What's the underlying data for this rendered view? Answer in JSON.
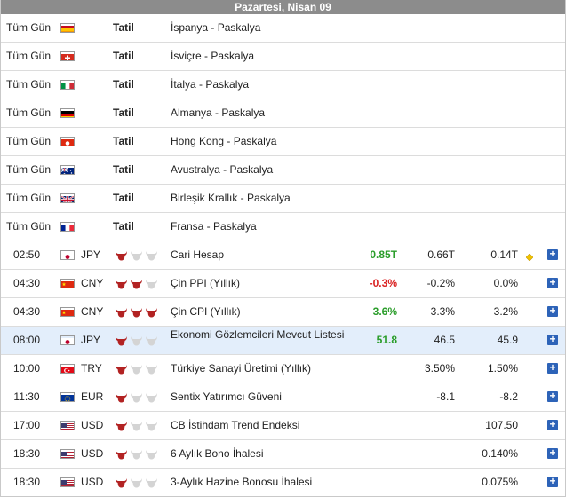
{
  "header": {
    "date": "Pazartesi, Nisan 09"
  },
  "holidays": [
    {
      "time": "Tüm Gün",
      "flag": "spain-flag-icon",
      "status": "Tatil",
      "event": "İspanya - Paskalya"
    },
    {
      "time": "Tüm Gün",
      "flag": "switzerland-flag-icon",
      "status": "Tatil",
      "event": "İsviçre - Paskalya"
    },
    {
      "time": "Tüm Gün",
      "flag": "italy-flag-icon",
      "status": "Tatil",
      "event": "İtalya - Paskalya"
    },
    {
      "time": "Tüm Gün",
      "flag": "germany-flag-icon",
      "status": "Tatil",
      "event": "Almanya - Paskalya"
    },
    {
      "time": "Tüm Gün",
      "flag": "hong-kong-flag-icon",
      "status": "Tatil",
      "event": "Hong Kong - Paskalya"
    },
    {
      "time": "Tüm Gün",
      "flag": "australia-flag-icon",
      "status": "Tatil",
      "event": "Avustralya - Paskalya"
    },
    {
      "time": "Tüm Gün",
      "flag": "uk-flag-icon",
      "status": "Tatil",
      "event": "Birleşik Krallık - Paskalya"
    },
    {
      "time": "Tüm Gün",
      "flag": "france-flag-icon",
      "status": "Tatil",
      "event": "Fransa - Paskalya"
    }
  ],
  "events": [
    {
      "time": "02:50",
      "currency": "JPY",
      "flag": "japan-flag-icon",
      "importance": 1,
      "event": "Cari Hesap",
      "actual": "0.85T",
      "actual_color": "green",
      "forecast": "0.66T",
      "previous": "0.14T",
      "revised_icon": "diamond-icon"
    },
    {
      "time": "04:30",
      "currency": "CNY",
      "flag": "china-flag-icon",
      "importance": 2,
      "event": "Çin PPI (Yıllık)",
      "actual": "-0.3%",
      "actual_color": "red",
      "forecast": "-0.2%",
      "previous": "0.0%"
    },
    {
      "time": "04:30",
      "currency": "CNY",
      "flag": "china-flag-icon",
      "importance": 3,
      "event": "Çin CPI (Yıllık)",
      "actual": "3.6%",
      "actual_color": "green",
      "forecast": "3.3%",
      "previous": "3.2%"
    },
    {
      "time": "08:00",
      "currency": "JPY",
      "flag": "japan-flag-icon",
      "importance": 1,
      "event": "Ekonomi Gözlemcileri Mevcut Listesi",
      "actual": "51.8",
      "actual_color": "green",
      "forecast": "46.5",
      "previous": "45.9",
      "highlight": true
    },
    {
      "time": "10:00",
      "currency": "TRY",
      "flag": "turkey-flag-icon",
      "importance": 1,
      "event": "Türkiye Sanayi Üretimi (Yıllık)",
      "actual": "",
      "forecast": "3.50%",
      "previous": "1.50%"
    },
    {
      "time": "11:30",
      "currency": "EUR",
      "flag": "eu-flag-icon",
      "importance": 1,
      "event": "Sentix Yatırımcı Güveni",
      "actual": "",
      "forecast": "-8.1",
      "previous": "-8.2"
    },
    {
      "time": "17:00",
      "currency": "USD",
      "flag": "usa-flag-icon",
      "importance": 1,
      "event": "CB İstihdam Trend Endeksi",
      "actual": "",
      "forecast": "",
      "previous": "107.50"
    },
    {
      "time": "18:30",
      "currency": "USD",
      "flag": "usa-flag-icon",
      "importance": 1,
      "event": "6 Aylık Bono İhalesi",
      "actual": "",
      "forecast": "",
      "previous": "0.140%"
    },
    {
      "time": "18:30",
      "currency": "USD",
      "flag": "usa-flag-icon",
      "importance": 1,
      "event": "3-Aylık Hazine Bonosu İhalesi",
      "actual": "",
      "forecast": "",
      "previous": "0.075%"
    }
  ],
  "colors": {
    "header_bg": "#8c8c8c",
    "highlight_bg": "#e3eefb",
    "green": "#2a9d2a",
    "red": "#d92121",
    "plus_bg": "#2d63b8",
    "bull_active": "#b22222",
    "bull_inactive": "#d4d4d4"
  },
  "icons": {
    "importance": "bull-icon",
    "details": "plus-icon"
  }
}
